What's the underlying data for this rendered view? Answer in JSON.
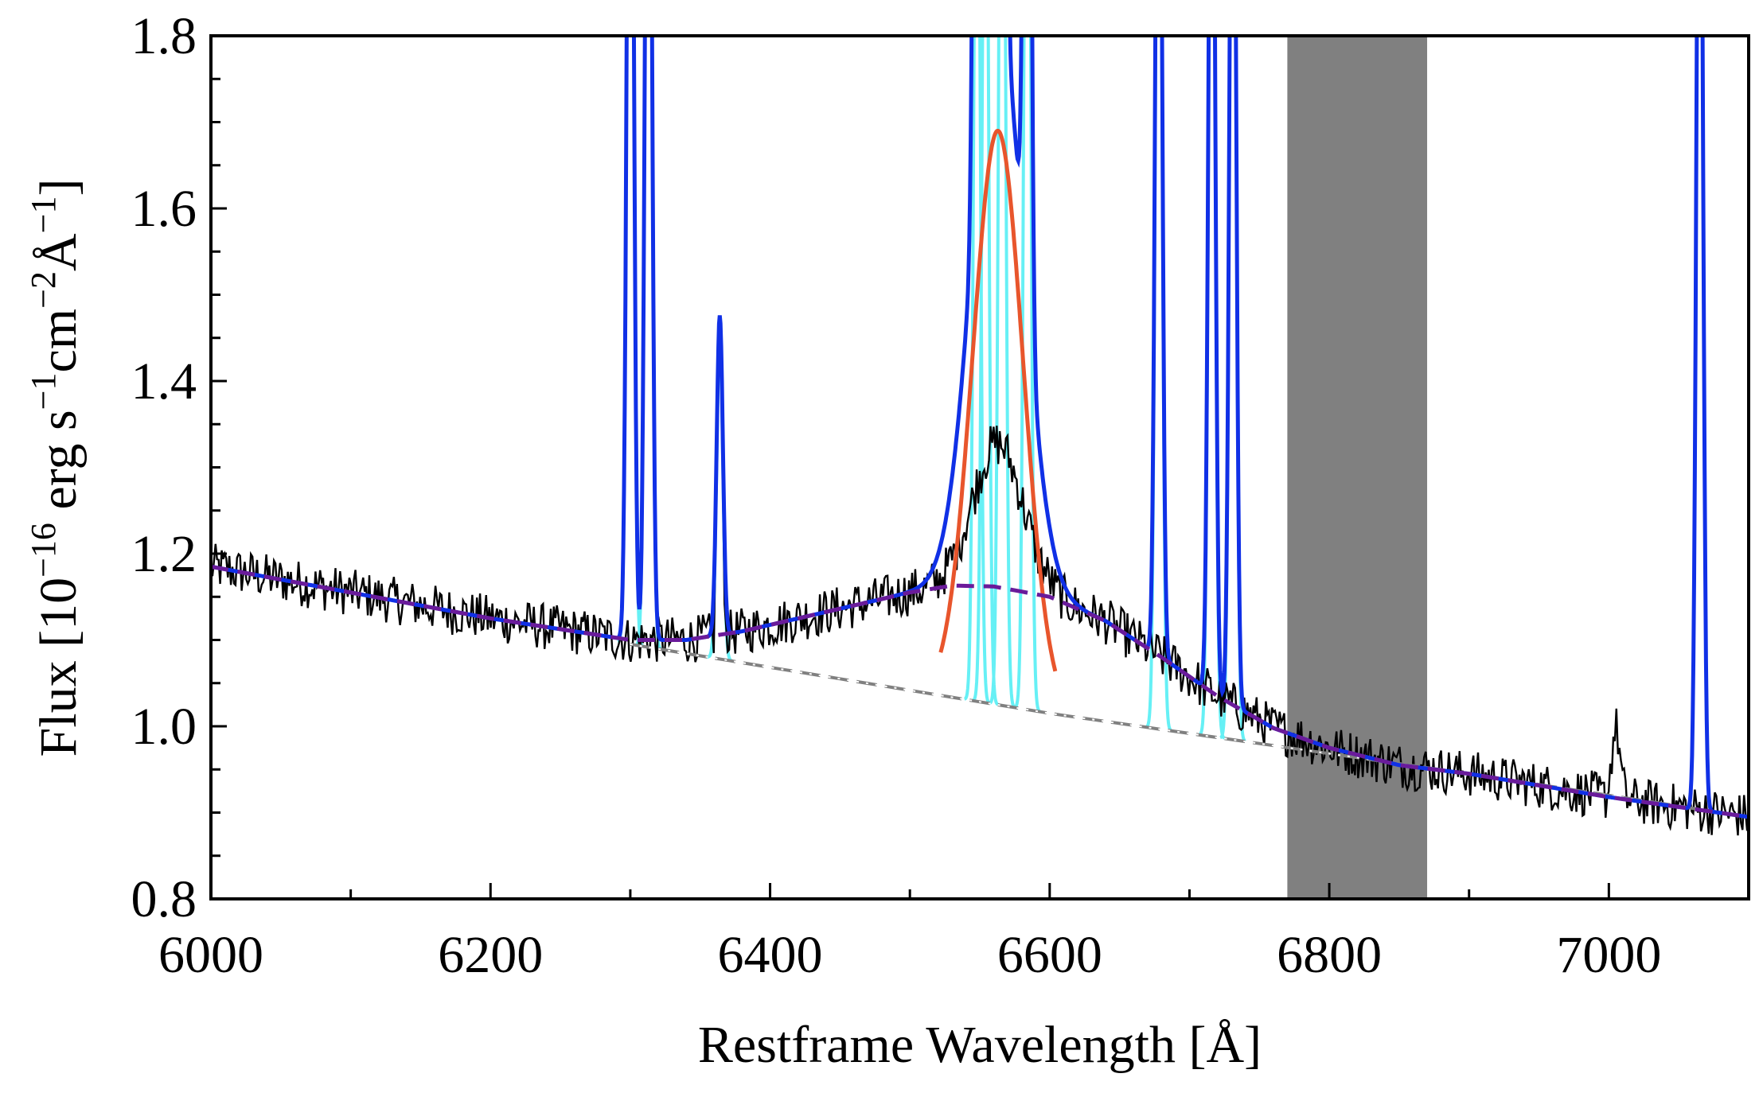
{
  "chart_data": {
    "type": "line",
    "xlabel": "Restframe Wavelength [Å]",
    "ylabel": {
      "prefix": "Flux [10",
      "exp1": "−16",
      "erg": " erg s",
      "exp2": "−1",
      "cm": "cm",
      "exp3": "−2",
      "ang": "Å",
      "exp4": "−1",
      "close": "]"
    },
    "xlim": [
      6000,
      7100
    ],
    "ylim": [
      0.8,
      1.8
    ],
    "x_ticks": [
      6000,
      6200,
      6400,
      6600,
      6800,
      7000
    ],
    "x_tick_labels": [
      "6000",
      "6200",
      "6400",
      "6600",
      "6800",
      "7000"
    ],
    "y_ticks": [
      0.8,
      1.0,
      1.2,
      1.4,
      1.6,
      1.8
    ],
    "y_tick_labels": [
      "0.8",
      "1.0",
      "1.2",
      "1.4",
      "1.6",
      "1.8"
    ],
    "grid": false,
    "legend": "none",
    "shaded_band": {
      "x0": 6770,
      "x1": 6870,
      "color": "#808080"
    },
    "continuum": {
      "x": [
        6000,
        6300,
        6600,
        6900,
        7100
      ],
      "y": [
        1.185,
        1.095,
        1.015,
        0.945,
        0.895
      ],
      "color": "#808080"
    },
    "broad_component": {
      "x": [
        6000,
        6100,
        6200,
        6300,
        6340,
        6380,
        6420,
        6460,
        6500,
        6530,
        6560,
        6600,
        6640,
        6680,
        6720,
        6760,
        6800,
        6850,
        6900,
        7000,
        7100
      ],
      "y": [
        1.185,
        1.155,
        1.125,
        1.1,
        1.1,
        1.11,
        1.125,
        1.14,
        1.155,
        1.163,
        1.162,
        1.15,
        1.122,
        1.08,
        1.035,
        0.998,
        0.975,
        0.955,
        0.945,
        0.918,
        0.895
      ],
      "color": "#6a1b9a"
    },
    "ha_broad": {
      "center": 6563,
      "peak": 1.69,
      "sigma": 18,
      "color": "#e8552c"
    },
    "narrow_lines": [
      {
        "center": 6300,
        "peak": 2.5
      },
      {
        "center": 6313,
        "peak": 2.5
      },
      {
        "center": 6364,
        "peak": 1.47
      },
      {
        "center": 6548,
        "peak": 2.3
      },
      {
        "center": 6554,
        "peak": 2.3
      },
      {
        "center": 6566,
        "peak": 2.5
      },
      {
        "center": 6584,
        "peak": 2.5
      },
      {
        "center": 6678,
        "peak": 2.4
      },
      {
        "center": 6716,
        "peak": 2.4
      },
      {
        "center": 6731,
        "peak": 2.4
      },
      {
        "center": 7065,
        "peak": 2.5
      }
    ],
    "colors": {
      "data": "#000000",
      "total_model": "#1030e6",
      "narrow_components": "#66f0f5",
      "axes": "#000000"
    }
  }
}
